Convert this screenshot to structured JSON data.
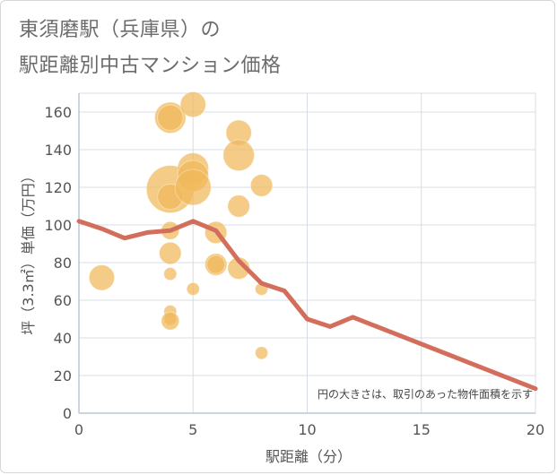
{
  "title": {
    "line1": "東須磨駅（兵庫県）の",
    "line2": "駅距離別中古マンション価格"
  },
  "colors": {
    "bubble": "#f0b85a",
    "line": "#d46e5c",
    "grid": "#d7dde6",
    "axis": "#bcc6d4"
  },
  "chart_data": {
    "type": "scatter",
    "title": "東須磨駅（兵庫県）の駅距離別中古マンション価格",
    "xlabel": "駅距離（分）",
    "ylabel": "坪（3.3㎡）単価（万円）",
    "xlim": [
      0,
      20
    ],
    "ylim": [
      0,
      170
    ],
    "xticks": [
      "0",
      "5",
      "10",
      "15",
      "20"
    ],
    "yticks": [
      "0",
      "20",
      "40",
      "60",
      "80",
      "100",
      "120",
      "140",
      "160"
    ],
    "grid": true,
    "note": "円の大きさは、取引のあった物件面積を示す",
    "bubbles": [
      {
        "x": 1,
        "y": 72,
        "size": 2
      },
      {
        "x": 4,
        "y": 157,
        "size": 3
      },
      {
        "x": 4,
        "y": 157,
        "size": 2
      },
      {
        "x": 4,
        "y": 119,
        "size": 7
      },
      {
        "x": 4,
        "y": 115,
        "size": 2
      },
      {
        "x": 4,
        "y": 97,
        "size": 1
      },
      {
        "x": 4,
        "y": 85,
        "size": 1.5
      },
      {
        "x": 4,
        "y": 74,
        "size": 0.5
      },
      {
        "x": 4,
        "y": 54,
        "size": 0.5
      },
      {
        "x": 4,
        "y": 50,
        "size": 0.5
      },
      {
        "x": 4,
        "y": 49,
        "size": 1
      },
      {
        "x": 5,
        "y": 164,
        "size": 2
      },
      {
        "x": 5,
        "y": 130,
        "size": 3
      },
      {
        "x": 5,
        "y": 126,
        "size": 3
      },
      {
        "x": 5,
        "y": 120,
        "size": 4
      },
      {
        "x": 5,
        "y": 66,
        "size": 0.5
      },
      {
        "x": 6,
        "y": 96,
        "size": 1.5
      },
      {
        "x": 6,
        "y": 79,
        "size": 1.5
      },
      {
        "x": 6,
        "y": 79,
        "size": 1
      },
      {
        "x": 7,
        "y": 149,
        "size": 2
      },
      {
        "x": 7,
        "y": 137,
        "size": 3
      },
      {
        "x": 7,
        "y": 110,
        "size": 1.5
      },
      {
        "x": 7,
        "y": 77,
        "size": 1.5
      },
      {
        "x": 8,
        "y": 121,
        "size": 1.5
      },
      {
        "x": 8,
        "y": 66,
        "size": 0.5
      },
      {
        "x": 8,
        "y": 32,
        "size": 0.5
      }
    ],
    "series": [
      {
        "points": [
          {
            "x": 0,
            "y": 102
          },
          {
            "x": 1,
            "y": 98
          },
          {
            "x": 2,
            "y": 93
          },
          {
            "x": 3,
            "y": 96
          },
          {
            "x": 4,
            "y": 97
          },
          {
            "x": 5,
            "y": 102
          },
          {
            "x": 6,
            "y": 97
          },
          {
            "x": 7,
            "y": 81
          },
          {
            "x": 8,
            "y": 69
          },
          {
            "x": 9,
            "y": 65
          },
          {
            "x": 10,
            "y": 50
          },
          {
            "x": 11,
            "y": 46
          },
          {
            "x": 12,
            "y": 51
          },
          {
            "x": 20,
            "y": 13
          }
        ]
      }
    ]
  }
}
